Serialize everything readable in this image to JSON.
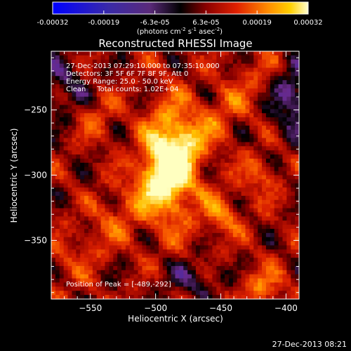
{
  "title": "Reconstructed RHESSI Image",
  "colorbar": {
    "tick_labels": [
      "-0.00032",
      "-0.00019",
      "-6.3e-05",
      "6.3e-05",
      "0.00019",
      "0.00032"
    ],
    "unit_label_main": "(photons cm",
    "unit_exp1": "-2",
    "unit_s": " s",
    "unit_exp2": "-1",
    "unit_asec": " asec",
    "unit_exp3": "-2",
    "unit_close": ")"
  },
  "info": {
    "line1": "27-Dec-2013 07:29:10.000 to 07:35:10.000",
    "line2": "Detectors: 3F 5F 6F 7F 8F 9F, Att 0",
    "line3": "Energy Range: 25.0 - 50.0 keV",
    "line4": "Clean     Total counts: 1.02E+04"
  },
  "peak_label": "Position of Peak = [-489,-292]",
  "timestamp": "27-Dec-2013 08:21",
  "chart_data": {
    "type": "heatmap",
    "title": "Reconstructed RHESSI Image",
    "xlabel": "Heliocentric X (arcsec)",
    "ylabel": "Heliocentric Y (arcsec)",
    "xlim": [
      -580,
      -390
    ],
    "ylim": [
      -395,
      -205
    ],
    "x_ticks": [
      -550,
      -500,
      -450,
      -400
    ],
    "x_tick_labels": [
      "−550",
      "−500",
      "−450",
      "−400"
    ],
    "y_ticks": [
      -250,
      -300,
      -350
    ],
    "y_tick_labels": [
      "−250",
      "−300",
      "−350"
    ],
    "value_range": [
      -0.00032,
      0.00032
    ],
    "peak": {
      "x": -489,
      "y": -292
    },
    "colormap": [
      "#0000ff",
      "#4a2aa6",
      "#6b2a8a",
      "#000000",
      "#8a0000",
      "#d81e00",
      "#ff6a00",
      "#ffc000",
      "#ffffc0"
    ]
  }
}
